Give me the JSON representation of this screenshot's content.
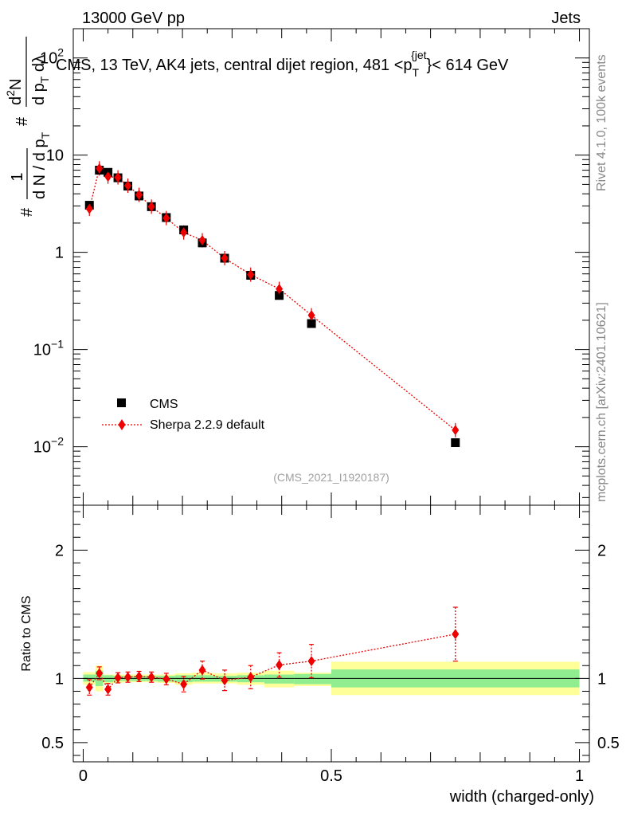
{
  "header": {
    "left": "13000 GeV pp",
    "right": "Jets"
  },
  "side_labels": {
    "rivet": "Rivet 4.1.0,  100k events",
    "mcplots": "mcplots.cern.ch [arXiv:2401.10621]"
  },
  "colors": {
    "cms": "#000000",
    "sherpa": "#ee0000",
    "band_inner": "#90ee90",
    "band_outer": "#ffff99",
    "watermark": "#a0a0a0"
  },
  "chart_data": [
    {
      "type": "scatter",
      "title": "CMS, 13 TeV, AK4 jets, central dijet region, 481 <p",
      "title_sub": "T",
      "title_sup": "{jet",
      "title_end": "}< 614 GeV",
      "watermark": "(CMS_2021_I1920187)",
      "ylabel_main": "1",
      "ylabel_num_prefix": "#",
      "ylabel_den": "d N / d p",
      "ylabel_den_sub": "T",
      "ylabel_frac_num": "d",
      "ylabel_frac_sup": "2",
      "ylabel_frac_num2": "N",
      "ylabel_frac_den": "d p",
      "ylabel_frac_den_sub": "T",
      "ylabel_frac_den2": " dλ",
      "yscale": "log",
      "ylim": [
        0.0025,
        200
      ],
      "xlim": [
        -0.02,
        1.02
      ],
      "y_tick_labels": [
        {
          "value": 100,
          "base": "10",
          "exp": "2"
        },
        {
          "value": 10,
          "base": "10",
          "exp": ""
        },
        {
          "value": 1,
          "base": "1",
          "exp": ""
        },
        {
          "value": 0.1,
          "base": "10",
          "exp": "−1"
        },
        {
          "value": 0.01,
          "base": "10",
          "exp": "−2"
        }
      ],
      "legend": [
        {
          "name": "CMS",
          "marker": "square"
        },
        {
          "name": "Sherpa 2.2.9 default",
          "marker": "diamond"
        }
      ],
      "series": [
        {
          "name": "CMS",
          "x": [
            0.0125,
            0.0325,
            0.05,
            0.07,
            0.09,
            0.1125,
            0.1375,
            0.1675,
            0.2025,
            0.24,
            0.285,
            0.3375,
            0.395,
            0.46,
            0.75
          ],
          "y": [
            3.05,
            7.0,
            6.65,
            5.85,
            4.8,
            3.8,
            2.95,
            2.28,
            1.7,
            1.25,
            0.87,
            0.58,
            0.36,
            0.185,
            0.011
          ]
        },
        {
          "name": "Sherpa 2.2.9 default",
          "x": [
            0.0125,
            0.0325,
            0.05,
            0.07,
            0.09,
            0.1125,
            0.1375,
            0.1675,
            0.2025,
            0.24,
            0.285,
            0.3375,
            0.395,
            0.46,
            0.75
          ],
          "y": [
            2.8,
            7.3,
            6.0,
            5.9,
            4.85,
            3.9,
            2.95,
            2.25,
            1.6,
            1.33,
            0.87,
            0.59,
            0.42,
            0.225,
            0.0148
          ]
        }
      ]
    },
    {
      "type": "scatter",
      "ylabel": "Ratio to CMS",
      "xlabel": "width (charged-only)",
      "ylim": [
        0.35,
        2.35
      ],
      "xlim": [
        -0.02,
        1.02
      ],
      "y_tick_labels": [
        "0.5",
        "1",
        "2"
      ],
      "y_tick_values": [
        0.5,
        1,
        2
      ],
      "x_tick_labels": [
        "0",
        "0.5",
        "1"
      ],
      "x_tick_values": [
        0,
        0.5,
        1
      ],
      "bins": [
        {
          "lo": 0.0,
          "hi": 0.025,
          "inner": [
            0.975,
            1.03
          ],
          "outer": [
            0.95,
            1.05
          ]
        },
        {
          "lo": 0.025,
          "hi": 0.04,
          "inner": [
            0.94,
            1.06
          ],
          "outer": [
            0.9,
            1.1
          ]
        },
        {
          "lo": 0.04,
          "hi": 0.06,
          "inner": [
            0.97,
            1.025
          ],
          "outer": [
            0.96,
            1.03
          ]
        },
        {
          "lo": 0.06,
          "hi": 0.08,
          "inner": [
            0.98,
            1.02
          ],
          "outer": [
            0.965,
            1.03
          ]
        },
        {
          "lo": 0.08,
          "hi": 0.1,
          "inner": [
            0.98,
            1.02
          ],
          "outer": [
            0.97,
            1.03
          ]
        },
        {
          "lo": 0.1,
          "hi": 0.125,
          "inner": [
            0.98,
            1.02
          ],
          "outer": [
            0.97,
            1.03
          ]
        },
        {
          "lo": 0.125,
          "hi": 0.15,
          "inner": [
            0.98,
            1.02
          ],
          "outer": [
            0.97,
            1.03
          ]
        },
        {
          "lo": 0.15,
          "hi": 0.185,
          "inner": [
            0.975,
            1.02
          ],
          "outer": [
            0.965,
            1.03
          ]
        },
        {
          "lo": 0.185,
          "hi": 0.22,
          "inner": [
            0.97,
            1.025
          ],
          "outer": [
            0.95,
            1.04
          ]
        },
        {
          "lo": 0.22,
          "hi": 0.26,
          "inner": [
            0.975,
            1.025
          ],
          "outer": [
            0.96,
            1.045
          ]
        },
        {
          "lo": 0.26,
          "hi": 0.31,
          "inner": [
            0.975,
            1.02
          ],
          "outer": [
            0.96,
            1.04
          ]
        },
        {
          "lo": 0.31,
          "hi": 0.365,
          "inner": [
            0.97,
            1.025
          ],
          "outer": [
            0.95,
            1.045
          ]
        },
        {
          "lo": 0.365,
          "hi": 0.425,
          "inner": [
            0.96,
            1.03
          ],
          "outer": [
            0.93,
            1.06
          ]
        },
        {
          "lo": 0.425,
          "hi": 0.5,
          "inner": [
            0.955,
            1.035
          ],
          "outer": [
            0.94,
            1.045
          ]
        },
        {
          "lo": 0.5,
          "hi": 1.0,
          "inner": [
            0.93,
            1.07
          ],
          "outer": [
            0.87,
            1.13
          ]
        }
      ],
      "series": [
        {
          "name": "Sherpa 2.2.9 default",
          "x": [
            0.0125,
            0.0325,
            0.05,
            0.07,
            0.09,
            0.1125,
            0.1375,
            0.1675,
            0.2025,
            0.24,
            0.285,
            0.3375,
            0.395,
            0.46,
            0.75
          ],
          "y": [
            0.93,
            1.04,
            0.915,
            1.005,
            1.01,
            1.015,
            1.01,
            0.995,
            0.955,
            1.065,
            0.985,
            1.01,
            1.105,
            1.135,
            1.345
          ],
          "err": [
            0.06,
            0.05,
            0.045,
            0.04,
            0.04,
            0.04,
            0.04,
            0.045,
            0.06,
            0.07,
            0.08,
            0.09,
            0.095,
            0.13,
            0.21
          ]
        }
      ]
    }
  ]
}
